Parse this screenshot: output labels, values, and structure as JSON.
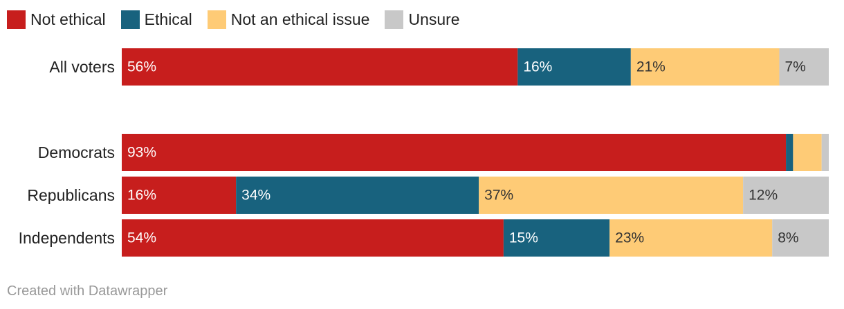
{
  "chart_data": {
    "type": "bar",
    "orientation": "horizontal",
    "stacked": true,
    "normalized": true,
    "categories": [
      "All voters",
      "Democrats",
      "Republicans",
      "Independents"
    ],
    "series": [
      {
        "name": "Not ethical",
        "color": "#c71e1d",
        "values": [
          56,
          93,
          16,
          54
        ],
        "labels": [
          "56%",
          "93%",
          "16%",
          "54%"
        ]
      },
      {
        "name": "Ethical",
        "color": "#18627e",
        "values": [
          16,
          1,
          34,
          15
        ],
        "labels": [
          "16%",
          "",
          "34%",
          "15%"
        ]
      },
      {
        "name": "Not an ethical issue",
        "color": "#fecb76",
        "values": [
          21,
          4,
          37,
          23
        ],
        "labels": [
          "21%",
          "",
          "37%",
          "23%"
        ]
      },
      {
        "name": "Unsure",
        "color": "#c8c8c8",
        "values": [
          7,
          1,
          12,
          8
        ],
        "labels": [
          "7%",
          "",
          "12%",
          "8%"
        ]
      }
    ],
    "xlim": [
      0,
      100
    ],
    "grid": false,
    "legend": "top-left"
  },
  "footer": {
    "credit": "Created with Datawrapper"
  }
}
